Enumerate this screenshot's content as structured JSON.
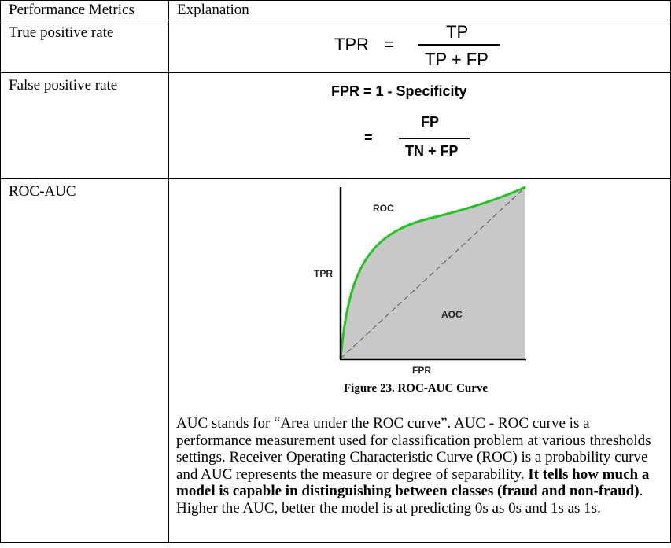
{
  "table": {
    "headers": [
      "Performance Metrics",
      "Explanation"
    ],
    "rows": {
      "tpr": {
        "label": "True positive rate"
      },
      "fpr": {
        "label": "False positive rate"
      },
      "roc": {
        "label": "ROC-AUC"
      }
    }
  },
  "tpr_formula": {
    "lhs": "TPR",
    "eq": "=",
    "numerator": "TP",
    "denominator": "TP + FP"
  },
  "fpr_formula": {
    "line1": "FPR = 1 - Specificity",
    "eq": "=",
    "numerator": "FP",
    "denominator": "TN + FP"
  },
  "roc_figure": {
    "curve_label": "ROC",
    "area_label": "AOC",
    "y_axis_label": "TPR",
    "x_axis_label": "FPR",
    "caption": "Figure 23. ROC-AUC Curve",
    "colors": {
      "curve": "#22c422",
      "area": "#c8c8c8",
      "axes": "#000000",
      "diagonal": "#555555"
    }
  },
  "roc_text": {
    "part1": "AUC stands for “Area under the ROC curve”. AUC - ROC curve is a performance measurement used for classification problem at various thresholds settings. Receiver Operating Characteristic Curve (ROC) is a probability curve and AUC represents the measure or degree of separability. ",
    "bold": "It tells how much a model is capable in distinguishing between classes (fraud and non-fraud)",
    "part2": ". Higher the AUC, better the model is at predicting 0s as 0s and 1s as 1s."
  }
}
